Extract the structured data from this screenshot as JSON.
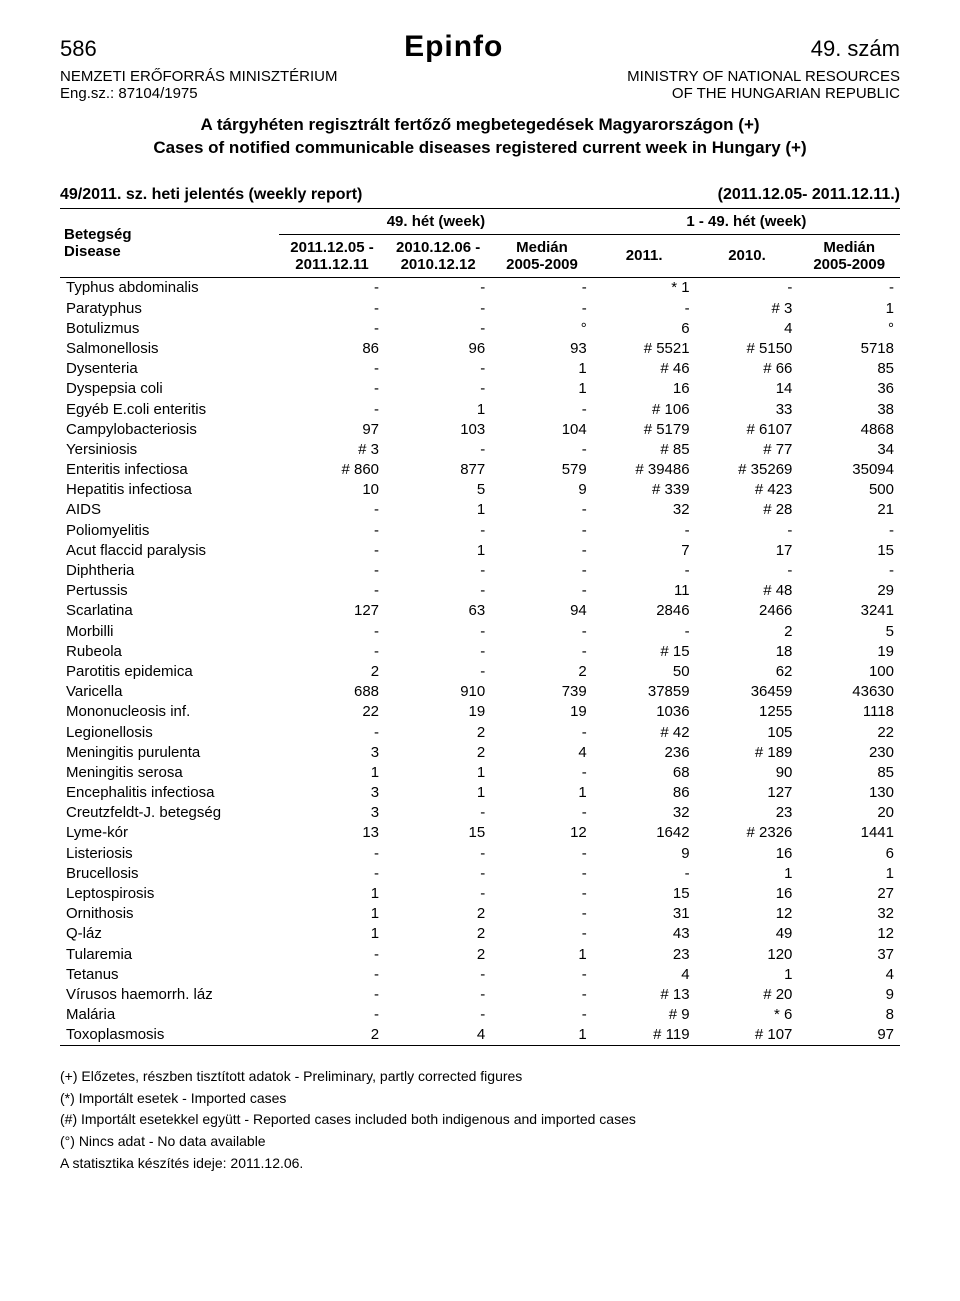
{
  "header": {
    "page_num_left": "586",
    "brand": "Epinfo",
    "page_num_right": "49. szám",
    "ministry_hu": "NEMZETI ERŐFORRÁS MINISZTÉRIUM",
    "engsz": "Eng.sz.: 87104/1975",
    "ministry_en_line1": "MINISTRY OF NATIONAL RESOURCES",
    "ministry_en_line2": "OF THE HUNGARIAN REPUBLIC",
    "title_hu": "A tárgyhéten regisztrált fertőző megbetegedések Magyarországon (+)",
    "title_en": "Cases of notified communicable diseases registered current week in Hungary (+)"
  },
  "report": {
    "left": "49/2011. sz. heti jelentés (weekly report)",
    "right": "(2011.12.05- 2011.12.11.)"
  },
  "table": {
    "head": {
      "disease_label_top": "Betegség",
      "disease_label_bottom": "Disease",
      "week_grp_left": "49. hét (week)",
      "week_grp_right": "1 - 49. hét (week)",
      "col1": "2011.12.05 - 2011.12.11",
      "col2": "2010.12.06 - 2010.12.12",
      "col3": "Medián 2005-2009",
      "col4": "2011.",
      "col5": "2010.",
      "col6": "Medián 2005-2009"
    },
    "rows": [
      {
        "name": "Typhus abdominalis",
        "c": [
          "-",
          "-",
          "-",
          "* 1",
          "-",
          "-"
        ]
      },
      {
        "name": "Paratyphus",
        "c": [
          "-",
          "-",
          "-",
          "-",
          "# 3",
          "1"
        ]
      },
      {
        "name": "Botulizmus",
        "c": [
          "-",
          "-",
          "°",
          "6",
          "4",
          "°"
        ]
      },
      {
        "name": "Salmonellosis",
        "c": [
          "86",
          "96",
          "93",
          "# 5521",
          "# 5150",
          "5718"
        ]
      },
      {
        "name": "Dysenteria",
        "c": [
          "-",
          "-",
          "1",
          "# 46",
          "# 66",
          "85"
        ]
      },
      {
        "name": "Dyspepsia coli",
        "c": [
          "-",
          "-",
          "1",
          "16",
          "14",
          "36"
        ]
      },
      {
        "name": "Egyéb E.coli enteritis",
        "c": [
          "-",
          "1",
          "-",
          "# 106",
          "33",
          "38"
        ]
      },
      {
        "name": "Campylobacteriosis",
        "c": [
          "97",
          "103",
          "104",
          "# 5179",
          "# 6107",
          "4868"
        ]
      },
      {
        "name": "Yersiniosis",
        "c": [
          "# 3",
          "-",
          "-",
          "# 85",
          "# 77",
          "34"
        ]
      },
      {
        "name": "Enteritis infectiosa",
        "c": [
          "# 860",
          "877",
          "579",
          "# 39486",
          "# 35269",
          "35094"
        ]
      },
      {
        "name": "Hepatitis infectiosa",
        "c": [
          "10",
          "5",
          "9",
          "# 339",
          "# 423",
          "500"
        ]
      },
      {
        "name": "AIDS",
        "c": [
          "-",
          "1",
          "-",
          "32",
          "# 28",
          "21"
        ]
      },
      {
        "name": "Poliomyelitis",
        "c": [
          "-",
          "-",
          "-",
          "-",
          "-",
          "-"
        ]
      },
      {
        "name": "Acut flaccid paralysis",
        "c": [
          "-",
          "1",
          "-",
          "7",
          "17",
          "15"
        ]
      },
      {
        "name": "Diphtheria",
        "c": [
          "-",
          "-",
          "-",
          "-",
          "-",
          "-"
        ]
      },
      {
        "name": "Pertussis",
        "c": [
          "-",
          "-",
          "-",
          "11",
          "# 48",
          "29"
        ]
      },
      {
        "name": "Scarlatina",
        "c": [
          "127",
          "63",
          "94",
          "2846",
          "2466",
          "3241"
        ]
      },
      {
        "name": "Morbilli",
        "c": [
          "-",
          "-",
          "-",
          "-",
          "2",
          "5"
        ]
      },
      {
        "name": "Rubeola",
        "c": [
          "-",
          "-",
          "-",
          "# 15",
          "18",
          "19"
        ]
      },
      {
        "name": "Parotitis epidemica",
        "c": [
          "2",
          "-",
          "2",
          "50",
          "62",
          "100"
        ]
      },
      {
        "name": "Varicella",
        "c": [
          "688",
          "910",
          "739",
          "37859",
          "36459",
          "43630"
        ]
      },
      {
        "name": "Mononucleosis inf.",
        "c": [
          "22",
          "19",
          "19",
          "1036",
          "1255",
          "1118"
        ]
      },
      {
        "name": "Legionellosis",
        "c": [
          "-",
          "2",
          "-",
          "# 42",
          "105",
          "22"
        ]
      },
      {
        "name": "Meningitis purulenta",
        "c": [
          "3",
          "2",
          "4",
          "236",
          "# 189",
          "230"
        ]
      },
      {
        "name": "Meningitis serosa",
        "c": [
          "1",
          "1",
          "-",
          "68",
          "90",
          "85"
        ]
      },
      {
        "name": "Encephalitis infectiosa",
        "c": [
          "3",
          "1",
          "1",
          "86",
          "127",
          "130"
        ]
      },
      {
        "name": "Creutzfeldt-J. betegség",
        "c": [
          "3",
          "-",
          "-",
          "32",
          "23",
          "20"
        ]
      },
      {
        "name": "Lyme-kór",
        "c": [
          "13",
          "15",
          "12",
          "1642",
          "# 2326",
          "1441"
        ]
      },
      {
        "name": "Listeriosis",
        "c": [
          "-",
          "-",
          "-",
          "9",
          "16",
          "6"
        ]
      },
      {
        "name": "Brucellosis",
        "c": [
          "-",
          "-",
          "-",
          "-",
          "1",
          "1"
        ]
      },
      {
        "name": "Leptospirosis",
        "c": [
          "1",
          "-",
          "-",
          "15",
          "16",
          "27"
        ]
      },
      {
        "name": "Ornithosis",
        "c": [
          "1",
          "2",
          "-",
          "31",
          "12",
          "32"
        ]
      },
      {
        "name": "Q-láz",
        "c": [
          "1",
          "2",
          "-",
          "43",
          "49",
          "12"
        ]
      },
      {
        "name": "Tularemia",
        "c": [
          "-",
          "2",
          "1",
          "23",
          "120",
          "37"
        ]
      },
      {
        "name": "Tetanus",
        "c": [
          "-",
          "-",
          "-",
          "4",
          "1",
          "4"
        ]
      },
      {
        "name": "Vírusos haemorrh. láz",
        "c": [
          "-",
          "-",
          "-",
          "# 13",
          "# 20",
          "9"
        ]
      },
      {
        "name": "Malária",
        "c": [
          "-",
          "-",
          "-",
          "# 9",
          "* 6",
          "8"
        ]
      },
      {
        "name": "Toxoplasmosis",
        "c": [
          "2",
          "4",
          "1",
          "# 119",
          "# 107",
          "97"
        ]
      }
    ]
  },
  "footnotes": [
    "(+) Előzetes, részben tisztított adatok - Preliminary, partly corrected figures",
    "(*) Importált esetek - Imported cases",
    "(#) Importált esetekkel együtt - Reported cases included both indigenous and imported cases",
    "(°) Nincs adat - No data available",
    "A statisztika készítés ideje: 2011.12.06."
  ],
  "style": {
    "font_family": "Arial",
    "text_color": "#000000",
    "background_color": "#ffffff",
    "border_color": "#000000",
    "body_font_size_pt": 11,
    "header_font_size_pt": 16,
    "brand_font_size_pt": 22
  }
}
